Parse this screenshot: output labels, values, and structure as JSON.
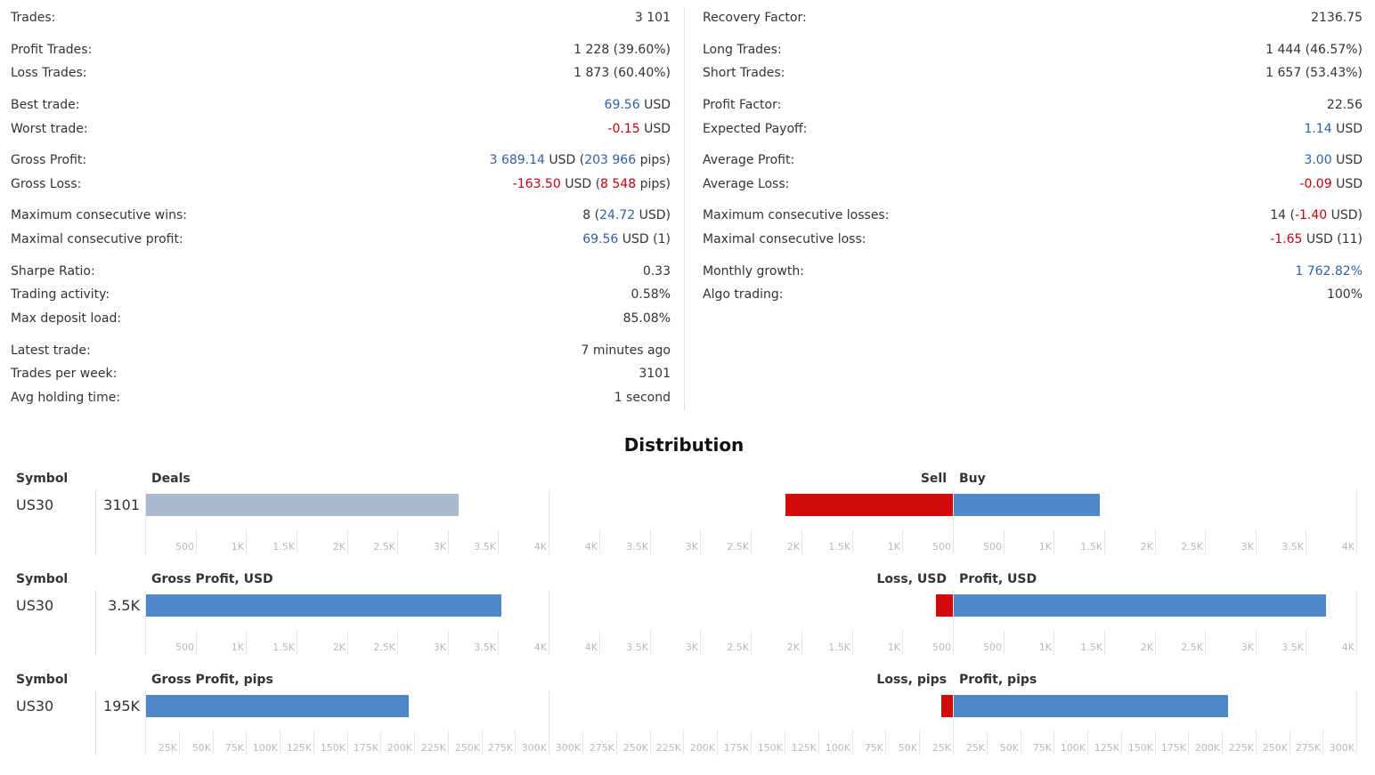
{
  "stats": {
    "left": [
      {
        "label": "Trades:",
        "value": [
          {
            "t": "3 101"
          }
        ]
      },
      {
        "label": "Profit Trades:",
        "value": [
          {
            "t": "1 228 (39.60%)"
          }
        ]
      },
      {
        "label": "Loss Trades:",
        "value": [
          {
            "t": "1 873 (60.40%)"
          }
        ]
      },
      {
        "label": "Best trade:",
        "value": [
          {
            "t": "69.56",
            "c": "pos"
          },
          {
            "t": " USD"
          }
        ]
      },
      {
        "label": "Worst trade:",
        "value": [
          {
            "t": "-0.15",
            "c": "neg"
          },
          {
            "t": " USD"
          }
        ]
      },
      {
        "label": "Gross Profit:",
        "value": [
          {
            "t": "3 689.14",
            "c": "pos"
          },
          {
            "t": " USD ("
          },
          {
            "t": "203 966",
            "c": "pos"
          },
          {
            "t": " pips)"
          }
        ]
      },
      {
        "label": "Gross Loss:",
        "value": [
          {
            "t": "-163.50",
            "c": "neg"
          },
          {
            "t": " USD ("
          },
          {
            "t": "8 548",
            "c": "neg"
          },
          {
            "t": " pips)"
          }
        ]
      },
      {
        "label": "Maximum consecutive wins:",
        "value": [
          {
            "t": "8 ("
          },
          {
            "t": "24.72",
            "c": "pos"
          },
          {
            "t": " USD)"
          }
        ]
      },
      {
        "label": "Maximal consecutive profit:",
        "value": [
          {
            "t": "69.56",
            "c": "pos"
          },
          {
            "t": " USD (1)"
          }
        ]
      },
      {
        "label": "Sharpe Ratio:",
        "value": [
          {
            "t": "0.33"
          }
        ]
      },
      {
        "label": "Trading activity:",
        "value": [
          {
            "t": "0.58%"
          }
        ]
      },
      {
        "label": "Max deposit load:",
        "value": [
          {
            "t": "85.08%"
          }
        ]
      },
      {
        "label": "Latest trade:",
        "value": [
          {
            "t": "7 minutes ago"
          }
        ]
      },
      {
        "label": "Trades per week:",
        "value": [
          {
            "t": "3101"
          }
        ]
      },
      {
        "label": "Avg holding time:",
        "value": [
          {
            "t": "1 second"
          }
        ]
      }
    ],
    "right": [
      {
        "label": "Recovery Factor:",
        "value": [
          {
            "t": "2136.75"
          }
        ]
      },
      {
        "label": "Long Trades:",
        "value": [
          {
            "t": "1 444 (46.57%)"
          }
        ]
      },
      {
        "label": "Short Trades:",
        "value": [
          {
            "t": "1 657 (53.43%)"
          }
        ]
      },
      {
        "label": "Profit Factor:",
        "value": [
          {
            "t": "22.56"
          }
        ]
      },
      {
        "label": "Expected Payoff:",
        "value": [
          {
            "t": "1.14",
            "c": "pos"
          },
          {
            "t": " USD"
          }
        ]
      },
      {
        "label": "Average Profit:",
        "value": [
          {
            "t": "3.00",
            "c": "pos"
          },
          {
            "t": " USD"
          }
        ]
      },
      {
        "label": "Average Loss:",
        "value": [
          {
            "t": "-0.09",
            "c": "neg"
          },
          {
            "t": " USD"
          }
        ]
      },
      {
        "label": "Maximum consecutive losses:",
        "value": [
          {
            "t": "14 ("
          },
          {
            "t": "-1.40",
            "c": "neg"
          },
          {
            "t": " USD)"
          }
        ]
      },
      {
        "label": "Maximal consecutive loss:",
        "value": [
          {
            "t": "-1.65",
            "c": "neg"
          },
          {
            "t": " USD (11)"
          }
        ]
      },
      {
        "label": "Monthly growth:",
        "value": [
          {
            "t": "1 762.82%",
            "c": "pos"
          }
        ]
      },
      {
        "label": "Algo trading:",
        "value": [
          {
            "t": "100%"
          }
        ]
      }
    ]
  },
  "distribution": {
    "title": "Distribution",
    "colors": {
      "neutral": "#a9b9d1",
      "buy": "#4f88c8",
      "sell": "#d20a0a"
    },
    "panels": [
      {
        "symbol_header": "Symbol",
        "symbol": "US30",
        "total": "3101",
        "left_header": "Deals",
        "mid_left_header": "Sell",
        "mid_right_header": "Buy",
        "left_value": 3101,
        "left_color": "neutral",
        "left_max": 4000,
        "sell_value": 1657,
        "buy_value": 1444,
        "side_max": 4000,
        "ticks_left": [
          "500",
          "1K",
          "1.5K",
          "2K",
          "2.5K",
          "3K",
          "3.5K",
          "4K"
        ],
        "ticks_mid_left": [
          "4K",
          "3.5K",
          "3K",
          "2.5K",
          "2K",
          "1.5K",
          "1K",
          "500"
        ],
        "ticks_mid_right": [
          "500",
          "1K",
          "1.5K",
          "2K",
          "2.5K",
          "3K",
          "3.5K",
          "4K"
        ]
      },
      {
        "symbol_header": "Symbol",
        "symbol": "US30",
        "total": "3.5K",
        "left_header": "Gross Profit, USD",
        "mid_left_header": "Loss, USD",
        "mid_right_header": "Profit, USD",
        "left_value": 3525.64,
        "left_color": "buy",
        "left_max": 4000,
        "sell_value": 163.5,
        "buy_value": 3689.14,
        "side_max": 4000,
        "ticks_left": [
          "500",
          "1K",
          "1.5K",
          "2K",
          "2.5K",
          "3K",
          "3.5K",
          "4K"
        ],
        "ticks_mid_left": [
          "4K",
          "3.5K",
          "3K",
          "2.5K",
          "2K",
          "1.5K",
          "1K",
          "500"
        ],
        "ticks_mid_right": [
          "500",
          "1K",
          "1.5K",
          "2K",
          "2.5K",
          "3K",
          "3.5K",
          "4K"
        ]
      },
      {
        "symbol_header": "Symbol",
        "symbol": "US30",
        "total": "195K",
        "left_header": "Gross Profit, pips",
        "mid_left_header": "Loss, pips",
        "mid_right_header": "Profit, pips",
        "left_value": 195418,
        "left_color": "buy",
        "left_max": 300000,
        "sell_value": 8548,
        "buy_value": 203966,
        "side_max": 300000,
        "ticks_left": [
          "25K",
          "50K",
          "75K",
          "100K",
          "125K",
          "150K",
          "175K",
          "200K",
          "225K",
          "250K",
          "275K",
          "300K"
        ],
        "ticks_mid_left": [
          "300K",
          "275K",
          "250K",
          "225K",
          "200K",
          "175K",
          "150K",
          "125K",
          "100K",
          "75K",
          "50K",
          "25K"
        ],
        "ticks_mid_right": [
          "25K",
          "50K",
          "75K",
          "100K",
          "125K",
          "150K",
          "175K",
          "200K",
          "225K",
          "250K",
          "275K",
          "300K"
        ]
      }
    ]
  }
}
